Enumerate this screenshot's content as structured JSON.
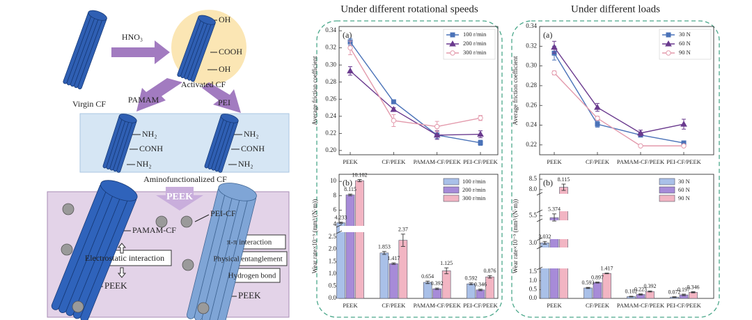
{
  "panel_titles": [
    "Under different rotational speeds",
    "Under different loads"
  ],
  "diagram": {
    "virgin": "Virgin CF",
    "acid": "HNO₃",
    "activated": "Activated CF",
    "groups": [
      "OH",
      "COOH",
      "OH"
    ],
    "branches": [
      "PAMAM",
      "PEI"
    ],
    "amino_groups": [
      "NH₂",
      "CONH",
      "NH₂"
    ],
    "amino": "Aminofunctionalized CF",
    "matrix_step": "PEEK",
    "pamam_cf": "PAMAM-CF",
    "pei_cf": "PEI-CF",
    "interactions_left": [
      "Electrostatic interaction"
    ],
    "interactions_right": [
      "π-π interaction",
      "Physical entanglement",
      "Hydrogen bond"
    ],
    "peek_labels": [
      "PEEK",
      "PEEK"
    ]
  },
  "chart_data": [
    {
      "type": "line",
      "panel_label": "(a)",
      "ylabel": "Average friction coefficient",
      "categories": [
        "PEEK",
        "CF/PEEK",
        "PAMAM-CF/PEEK",
        "PEI-CF/PEEK"
      ],
      "ylim": [
        0.195,
        0.345
      ],
      "yticks": [
        {
          "value": 0.2,
          "label": "0.20"
        },
        0.22,
        0.24,
        0.26,
        0.28,
        {
          "value": 0.3,
          "label": "0.30"
        },
        0.32,
        0.34
      ],
      "legend": "upper right",
      "series": [
        {
          "name": "100 r/min",
          "color": "#4a72b8",
          "marker": "square",
          "values": [
            0.327,
            0.257,
            0.218,
            0.209
          ],
          "errors": [
            0.004,
            0.002,
            0.004,
            0.003
          ]
        },
        {
          "name": "200 r/min",
          "color": "#6a3a8e",
          "marker": "triangle",
          "values": [
            0.293,
            0.248,
            0.218,
            0.219
          ],
          "errors": [
            0.005,
            0.002,
            0.005,
            0.004
          ]
        },
        {
          "name": "300 r/min",
          "color": "#e39aac",
          "marker": "circle",
          "values": [
            0.32,
            0.235,
            0.228,
            0.238
          ],
          "errors": [
            0.008,
            0.007,
            0.006,
            0.003
          ]
        }
      ]
    },
    {
      "type": "bar",
      "panel_label": "(b)",
      "ylabel": "Wear rate×10⁻⁵ (mm³/(N·m))",
      "categories": [
        "PEEK",
        "CF/PEEK",
        "PAMAM-CF/PEEK",
        "PEI-CF/PEEK"
      ],
      "ylim": [
        0,
        10.6
      ],
      "ybreaks": [
        [
          2.7,
          3.8
        ]
      ],
      "yticks": [
        {
          "value": 0,
          "label": "0.0"
        },
        0.5,
        {
          "value": 1,
          "label": "1.0"
        },
        1.5,
        {
          "value": 2,
          "label": "2.0"
        },
        2.5,
        4,
        6,
        8,
        10
      ],
      "legend": "upper right",
      "data_labels": true,
      "series": [
        {
          "name": "100 r/min",
          "color": "#a9c0e8",
          "values": [
            4.233,
            1.853,
            0.654,
            0.592
          ],
          "errors": [
            0.08,
            0.06,
            0.05,
            0.04
          ]
        },
        {
          "name": "200 r/min",
          "color": "#a78bd8",
          "values": [
            8.115,
            1.417,
            0.392,
            0.346
          ],
          "errors": [
            0.12,
            0.03,
            0.03,
            0.03
          ]
        },
        {
          "name": "300 r/min",
          "color": "#f2b5c3",
          "values": [
            10.102,
            2.37,
            1.125,
            0.876
          ],
          "errors": [
            0.15,
            0.25,
            0.12,
            0.05
          ]
        }
      ]
    },
    {
      "type": "line",
      "panel_label": "(a)",
      "ylabel": "Average friction coefficient",
      "categories": [
        "PEEK",
        "CF/PEEK",
        "PAMAM-CF/PEEK",
        "PEI-CF/PEEK"
      ],
      "ylim": [
        0.21,
        0.34
      ],
      "yticks": [
        0.22,
        0.24,
        0.26,
        0.28,
        {
          "value": 0.3,
          "label": "0.30"
        },
        0.32,
        0.34
      ],
      "legend": "upper right",
      "series": [
        {
          "name": "30 N",
          "color": "#4a72b8",
          "marker": "square",
          "values": [
            0.313,
            0.241,
            0.23,
            0.222
          ],
          "errors": [
            0.007,
            0.003,
            0.002,
            0.002
          ]
        },
        {
          "name": "60 N",
          "color": "#6a3a8e",
          "marker": "triangle",
          "values": [
            0.319,
            0.258,
            0.232,
            0.241
          ],
          "errors": [
            0.006,
            0.004,
            0.003,
            0.005
          ]
        },
        {
          "name": "90 N",
          "color": "#e39aac",
          "marker": "circle",
          "values": [
            0.293,
            0.247,
            0.219,
            0.219
          ],
          "errors": [
            0.002,
            0.002,
            0.001,
            0.001
          ]
        }
      ]
    },
    {
      "type": "bar",
      "panel_label": "(b)",
      "ylabel": "Wear rate×10⁻⁵ (mm³/(N·m))",
      "categories": [
        "PEEK",
        "CF/PEEK",
        "PAMAM-CF/PEEK",
        "PEI-CF/PEEK"
      ],
      "ylim": [
        0,
        8.6
      ],
      "ybreaks": [
        [
          1.7,
          2.7
        ],
        [
          3.3,
          5.2
        ],
        [
          5.8,
          7.8
        ]
      ],
      "yticks": [
        {
          "value": 0,
          "label": "0.0"
        },
        0.5,
        {
          "value": 1,
          "label": "1.0"
        },
        1.5,
        {
          "value": 3,
          "label": "3.0"
        },
        5.5,
        {
          "value": 8,
          "label": "8.0"
        },
        8.5
      ],
      "legend": "upper right",
      "data_labels": true,
      "series": [
        {
          "name": "30 N",
          "color": "#a9c0e8",
          "values": [
            3.032,
            0.593,
            0.102,
            0.072
          ],
          "errors": [
            0.1,
            0.03,
            0.02,
            0.02
          ]
        },
        {
          "name": "60 N",
          "color": "#a78bd8",
          "values": [
            5.374,
            0.897,
            0.223,
            0.197
          ],
          "errors": [
            0.25,
            0.03,
            0.03,
            0.04
          ]
        },
        {
          "name": "90 N",
          "color": "#f2b5c3",
          "values": [
            8.115,
            1.417,
            0.392,
            0.346
          ],
          "errors": [
            0.15,
            0.02,
            0.03,
            0.03
          ]
        }
      ]
    }
  ]
}
